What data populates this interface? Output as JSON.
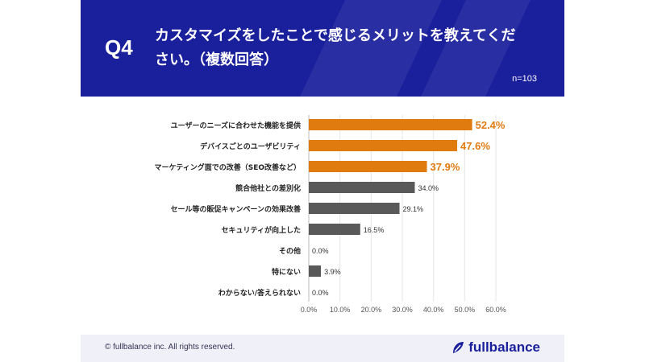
{
  "header": {
    "q_label": "Q4",
    "title": "カスタマイズをしたことで感じるメリットを教えてください。（複数回答）",
    "n_label": "n=103"
  },
  "footer": {
    "copyright": "© fullbalance inc. All rights reserved.",
    "logo_text": "fullbalance"
  },
  "colors": {
    "highlight": "#e07b10",
    "normal": "#595959",
    "header_bg": "#1a1f9c"
  },
  "chart_data": {
    "type": "bar",
    "orientation": "horizontal",
    "categories": [
      "ユーザーのニーズに合わせた機能を提供",
      "デバイスごとのユーザビリティ",
      "マーケティング面での改善（SEO改善など）",
      "競合他社との差別化",
      "セール等の販促キャンペーンの効果改善",
      "セキュリティが向上した",
      "その他",
      "特にない",
      "わからない/答えられない"
    ],
    "values": [
      52.4,
      47.6,
      37.9,
      34.0,
      29.1,
      16.5,
      0.0,
      3.9,
      0.0
    ],
    "value_labels": [
      "52.4%",
      "47.6%",
      "37.9%",
      "34.0%",
      "29.1%",
      "16.5%",
      "0.0%",
      "3.9%",
      "0.0%"
    ],
    "highlighted": [
      true,
      true,
      true,
      false,
      false,
      false,
      false,
      false,
      false
    ],
    "xlim": [
      0,
      60
    ],
    "xticks": [
      "0.0%",
      "10.0%",
      "20.0%",
      "30.0%",
      "40.0%",
      "50.0%",
      "60.0%"
    ],
    "grid": true
  }
}
